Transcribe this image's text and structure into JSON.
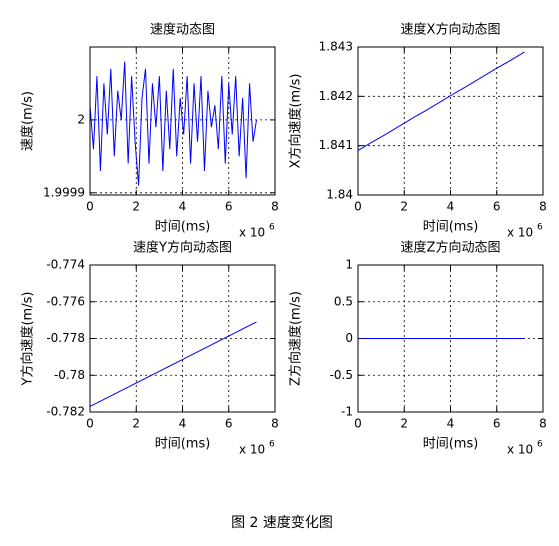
{
  "chart_data": [
    {
      "type": "line",
      "title": "速度动态图",
      "xlabel": "时间(ms)",
      "ylabel": "速度(m/s)",
      "x_scale": "x 10",
      "x_scale_exp": "6",
      "x": [
        0,
        0.15,
        0.3,
        0.45,
        0.6,
        0.75,
        0.9,
        1.05,
        1.2,
        1.35,
        1.5,
        1.65,
        1.8,
        1.95,
        2.1,
        2.25,
        2.4,
        2.55,
        2.7,
        2.85,
        3,
        3.15,
        3.3,
        3.45,
        3.6,
        3.75,
        3.9,
        4.05,
        4.2,
        4.35,
        4.5,
        4.65,
        4.8,
        4.95,
        5.1,
        5.25,
        5.4,
        5.55,
        5.7,
        5.85,
        6,
        6.15,
        6.3,
        6.45,
        6.6,
        6.75,
        6.9,
        7.05,
        7.2
      ],
      "values": [
        2.00002,
        1.99996,
        2.00006,
        1.99993,
        2.00005,
        1.99998,
        2.00007,
        1.99995,
        2.00004,
        2.0,
        2.00008,
        1.99994,
        2.00006,
        1.99997,
        1.99991,
        2.00003,
        2.00007,
        1.99994,
        2.00005,
        1.99999,
        2.00006,
        1.99993,
        2.00004,
        1.99996,
        2.00007,
        1.99995,
        2.00003,
        1.99998,
        2.00006,
        1.99994,
        2.00005,
        1.99997,
        2.00006,
        1.99993,
        2.00004,
        1.99999,
        2.00002,
        1.99996,
        2.00006,
        1.99994,
        2.00005,
        1.99998,
        2.00006,
        1.99995,
        2.00003,
        1.99992,
        2.00005,
        1.99997,
        2.0
      ],
      "color": "#0000ff",
      "xlim": [
        0,
        8
      ],
      "ylim": [
        1.999897,
        2.0001
      ],
      "xticks": [
        0,
        2,
        4,
        6,
        8
      ],
      "yticks": [
        1.9999,
        2
      ],
      "grid": true
    },
    {
      "type": "line",
      "title": "速度X方向动态图",
      "xlabel": "时间(ms)",
      "ylabel": "X方向速度(m/s)",
      "x_scale": "x 10",
      "x_scale_exp": "6",
      "x": [
        0,
        0.6,
        1.2,
        1.8,
        2.4,
        3,
        3.6,
        4.2,
        4.8,
        5.4,
        6,
        6.6,
        7.2
      ],
      "values": [
        1.8409,
        1.84107,
        1.84123,
        1.8414,
        1.84157,
        1.84173,
        1.8419,
        1.84207,
        1.84223,
        1.8424,
        1.84257,
        1.84273,
        1.8429
      ],
      "color": "#0000ff",
      "xlim": [
        0,
        8
      ],
      "ylim": [
        1.84,
        1.843
      ],
      "xticks": [
        0,
        2,
        4,
        6,
        8
      ],
      "yticks": [
        1.84,
        1.841,
        1.842,
        1.843
      ],
      "grid": true
    },
    {
      "type": "line",
      "title": "速度Y方向动态图",
      "xlabel": "时间(ms)",
      "ylabel": "Y方向速度(m/s)",
      "x_scale": "x 10",
      "x_scale_exp": "6",
      "x": [
        0,
        7.2
      ],
      "values": [
        -0.7817,
        -0.7771
      ],
      "color": "#0000ff",
      "xlim": [
        0,
        8
      ],
      "ylim": [
        -0.782,
        -0.774
      ],
      "xticks": [
        0,
        2,
        4,
        6,
        8
      ],
      "yticks": [
        -0.782,
        -0.78,
        -0.778,
        -0.776,
        -0.774
      ],
      "grid": true
    },
    {
      "type": "line",
      "title": "速度Z方向动态图",
      "xlabel": "时间(ms)",
      "ylabel": "Z方向速度(m/s)",
      "x_scale": "x 10",
      "x_scale_exp": "6",
      "x": [
        0,
        7.2
      ],
      "values": [
        0,
        0
      ],
      "color": "#0000ff",
      "xlim": [
        0,
        8
      ],
      "ylim": [
        -1,
        1
      ],
      "xticks": [
        0,
        2,
        4,
        6,
        8
      ],
      "yticks": [
        -1,
        -0.5,
        0,
        0.5,
        1
      ],
      "grid": true
    }
  ],
  "caption": "图 2 速度变化图"
}
